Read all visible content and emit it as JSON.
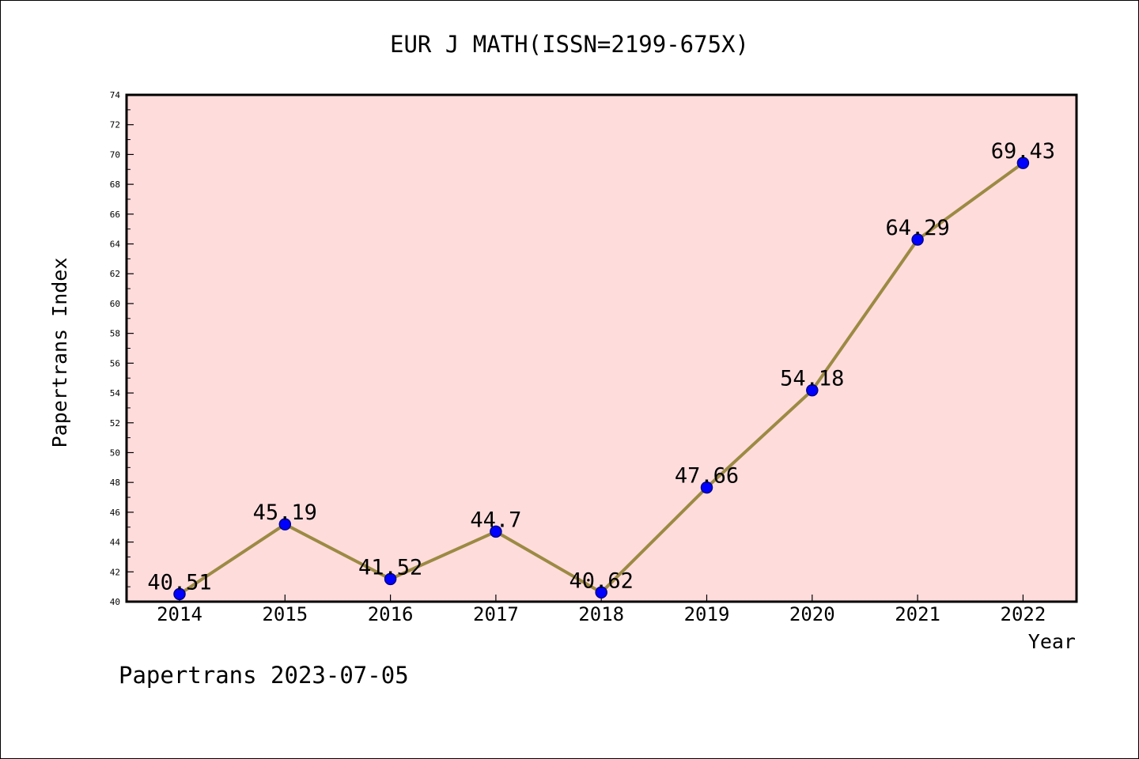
{
  "chart_data": {
    "type": "line",
    "title": "EUR J MATH(ISSN=2199-675X)",
    "xlabel": "Year",
    "ylabel": "Papertrans Index",
    "categories": [
      "2014",
      "2015",
      "2016",
      "2017",
      "2018",
      "2019",
      "2020",
      "2021",
      "2022"
    ],
    "series": [
      {
        "values": [
          40.51,
          45.19,
          41.52,
          44.7,
          40.62,
          47.66,
          54.18,
          64.29,
          69.43
        ],
        "labels": [
          "40.51",
          "45.19",
          "41.52",
          "44.7",
          "40.62",
          "47.66",
          "54.18",
          "64.29",
          "69.43"
        ]
      }
    ],
    "ylim": [
      40,
      74
    ],
    "y_major_step": 2,
    "grid": false,
    "legend": "none",
    "footer": "Papertrans 2023-07-05",
    "colors": {
      "plot_background": "#ffdcdc",
      "line": "#9c8a43",
      "marker": "#0000ff",
      "marker_edge": "#00008b"
    }
  }
}
